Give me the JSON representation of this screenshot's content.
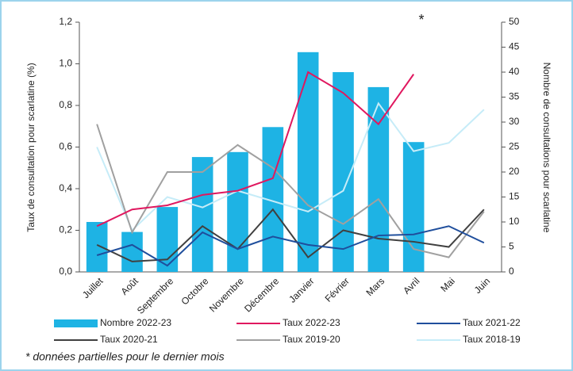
{
  "chart_data": {
    "type": "bar",
    "y_label": "Taux de consultation pour scarlatine (%)",
    "y2_label": "Nombre de consultations pour scarlatine",
    "annotation": "*",
    "footnote": "* données partielles pour le dernier mois",
    "categories": [
      "Juillet",
      "Août",
      "Septembre",
      "Octobre",
      "Novembre",
      "Décembre",
      "Janvier",
      "Février",
      "Mars",
      "Avril",
      "Mai",
      "Juin"
    ],
    "ylim": [
      0,
      1.2
    ],
    "yticks": [
      {
        "value": 0,
        "label": "0,0"
      },
      {
        "value": 0.2,
        "label": "0,2"
      },
      {
        "value": 0.4,
        "label": "0,4"
      },
      {
        "value": 0.6,
        "label": "0,6"
      },
      {
        "value": 0.8,
        "label": "0,8"
      },
      {
        "value": 1.0,
        "label": "1,0"
      },
      {
        "value": 1.2,
        "label": "1,2"
      }
    ],
    "y2lim": [
      0,
      50
    ],
    "y2ticks": [
      0,
      5,
      10,
      15,
      20,
      25,
      30,
      35,
      40,
      45,
      50
    ],
    "series": [
      {
        "name": "Nombre 2022-23",
        "type": "bar",
        "axis": "y2",
        "color": "#1eb3e4",
        "values": [
          10,
          8,
          13,
          23,
          24,
          29,
          44,
          40,
          37,
          26,
          null,
          null
        ]
      },
      {
        "name": "Taux 2022-23",
        "type": "line",
        "color": "#e0185f",
        "values": [
          0.22,
          0.3,
          0.32,
          0.37,
          0.39,
          0.45,
          0.96,
          0.86,
          0.71,
          0.95,
          null,
          null
        ]
      },
      {
        "name": "Taux 2021-22",
        "type": "line",
        "color": "#1f4e9c",
        "values": [
          0.08,
          0.13,
          0.03,
          0.19,
          0.11,
          0.17,
          0.13,
          0.11,
          0.175,
          0.18,
          0.22,
          0.14
        ]
      },
      {
        "name": "Taux 2020-21",
        "type": "line",
        "color": "#404040",
        "values": [
          0.13,
          0.05,
          0.06,
          0.22,
          0.11,
          0.3,
          0.07,
          0.2,
          0.16,
          0.145,
          0.12,
          0.3
        ]
      },
      {
        "name": "Taux 2019-20",
        "type": "line",
        "color": "#a0a0a0",
        "values": [
          0.71,
          0.19,
          0.48,
          0.48,
          0.61,
          0.5,
          0.32,
          0.23,
          0.35,
          0.11,
          0.07,
          0.29
        ]
      },
      {
        "name": "Taux 2018-19",
        "type": "line",
        "color": "#c6ecf8",
        "values": [
          0.6,
          0.2,
          0.36,
          0.31,
          0.39,
          0.34,
          0.29,
          0.39,
          0.81,
          0.58,
          0.62,
          0.78
        ]
      }
    ]
  }
}
